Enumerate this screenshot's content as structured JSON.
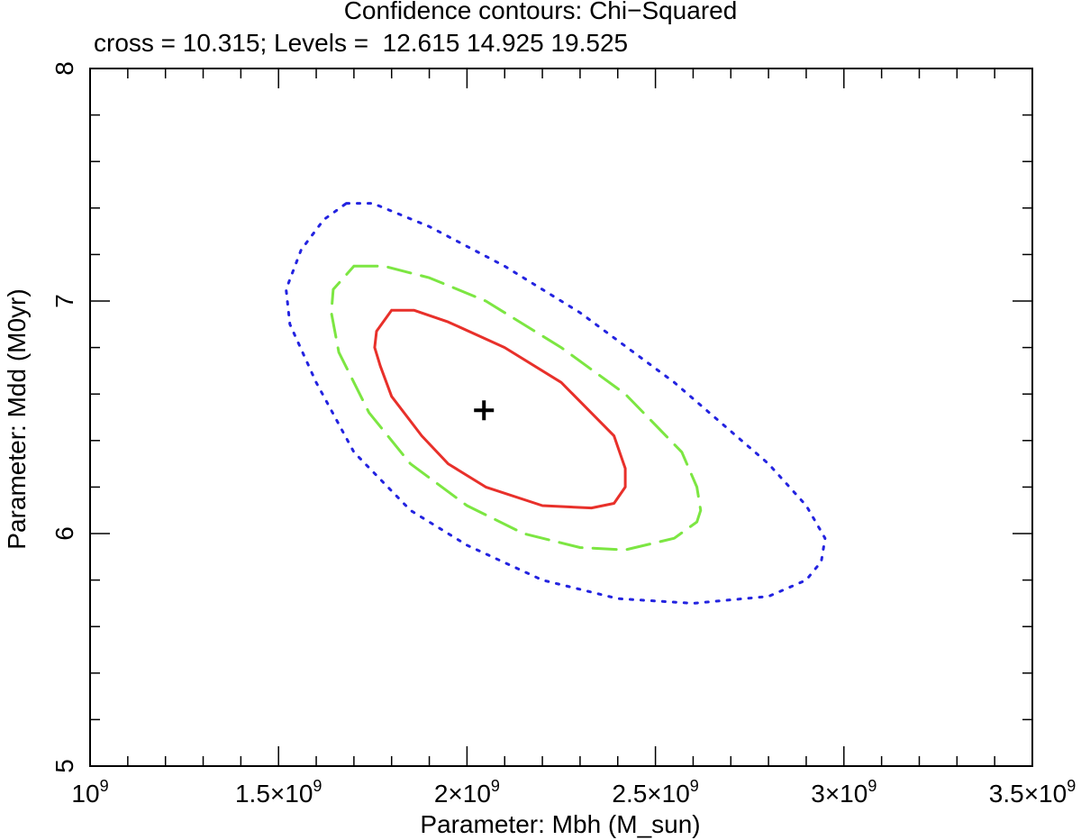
{
  "chart_data": {
    "type": "line",
    "title": "Confidence contours: Chi−Squared",
    "subtitle": "cross = 10.315; Levels =  12.615 14.925 19.525",
    "xlabel": "Parameter: Mbh (M_sun)",
    "ylabel": "Parameter: Mdd (M0yr)",
    "xlim": [
      1000000000,
      3500000000
    ],
    "ylim": [
      5,
      8
    ],
    "x_tick_values": [
      1000000000,
      1500000000,
      2000000000,
      2500000000,
      3000000000,
      3500000000
    ],
    "x_tick_labels": [
      {
        "mantissa": "",
        "exp": "9"
      },
      {
        "mantissa": "1.5×",
        "exp": "9"
      },
      {
        "mantissa": "2×",
        "exp": "9"
      },
      {
        "mantissa": "2.5×",
        "exp": "9"
      },
      {
        "mantissa": "3×",
        "exp": "9"
      },
      {
        "mantissa": "3.5×",
        "exp": "9"
      }
    ],
    "y_tick_values": [
      5,
      6,
      7,
      8
    ],
    "y_tick_labels": [
      "5",
      "6",
      "7",
      "8"
    ],
    "grid": false,
    "best_fit": {
      "x": 2045000000,
      "y": 6.53,
      "marker": "cross",
      "color": "#000000"
    },
    "series": [
      {
        "level": 12.615,
        "color": "#e8302a",
        "style": "solid",
        "x": [
          1800000000,
          1860000000,
          1950000000,
          2100000000,
          2250000000,
          2390000000,
          2420000000,
          2420000000,
          2390000000,
          2330000000,
          2200000000,
          2050000000,
          1950000000,
          1880000000,
          1800000000,
          1770000000,
          1755000000,
          1760000000,
          1800000000
        ],
        "y": [
          6.96,
          6.96,
          6.91,
          6.8,
          6.65,
          6.42,
          6.28,
          6.2,
          6.13,
          6.11,
          6.12,
          6.2,
          6.3,
          6.42,
          6.59,
          6.72,
          6.8,
          6.87,
          6.96
        ]
      },
      {
        "level": 14.925,
        "color": "#7ce642",
        "style": "dashed",
        "x": [
          1700000000,
          1780000000,
          1900000000,
          2050000000,
          2250000000,
          2420000000,
          2570000000,
          2610000000,
          2620000000,
          2610000000,
          2550000000,
          2420000000,
          2300000000,
          2150000000,
          2000000000,
          1850000000,
          1740000000,
          1660000000,
          1640000000,
          1645000000,
          1700000000
        ],
        "y": [
          7.15,
          7.15,
          7.1,
          7.0,
          6.8,
          6.6,
          6.35,
          6.2,
          6.1,
          6.05,
          5.98,
          5.93,
          5.94,
          6.0,
          6.12,
          6.3,
          6.52,
          6.78,
          6.95,
          7.05,
          7.15
        ]
      },
      {
        "level": 19.525,
        "color": "#2323e0",
        "style": "dotted",
        "x": [
          1680000000,
          1750000000,
          1900000000,
          2100000000,
          2300000000,
          2550000000,
          2800000000,
          2900000000,
          2950000000,
          2940000000,
          2900000000,
          2800000000,
          2600000000,
          2400000000,
          2200000000,
          2000000000,
          1850000000,
          1700000000,
          1600000000,
          1530000000,
          1520000000,
          1560000000,
          1620000000,
          1680000000
        ],
        "y": [
          7.42,
          7.42,
          7.32,
          7.15,
          6.95,
          6.65,
          6.3,
          6.12,
          5.98,
          5.88,
          5.8,
          5.73,
          5.7,
          5.72,
          5.8,
          5.95,
          6.1,
          6.35,
          6.65,
          6.9,
          7.05,
          7.22,
          7.35,
          7.42
        ]
      }
    ]
  }
}
